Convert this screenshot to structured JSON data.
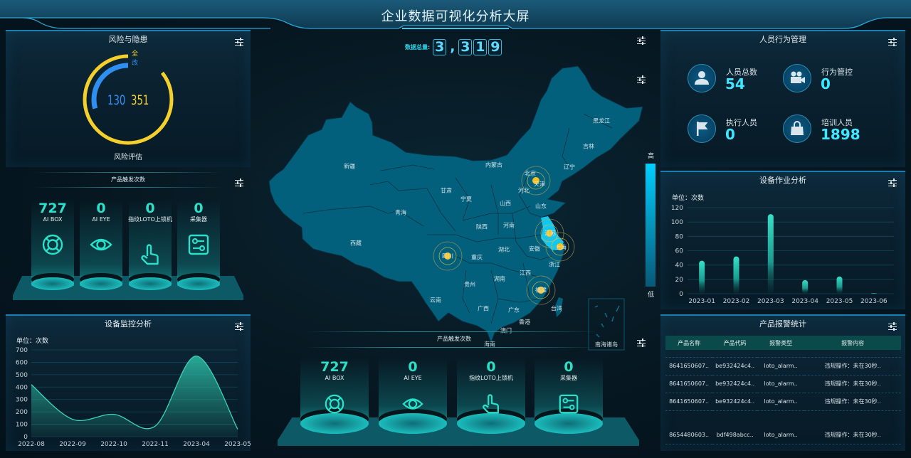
{
  "header": {
    "title": "企业数据可视化分析大屏"
  },
  "total": {
    "label": "数据总量:",
    "digits": [
      "3",
      ",",
      "3",
      "1",
      "9"
    ]
  },
  "risk": {
    "title": "风险与隐患",
    "legend_all": "全",
    "legend_fix": "改",
    "value_fix": "130",
    "value_all": "351",
    "caption": "风险评估",
    "colors": {
      "all": "#f5cf2c",
      "fix": "#2f8ff0"
    }
  },
  "product_left": {
    "title": "产品触发次数",
    "items": [
      {
        "value": "727",
        "label": "AI BOX",
        "icon": "lifebuoy-icon"
      },
      {
        "value": "0",
        "label": "AI EYE",
        "icon": "eye-icon"
      },
      {
        "value": "0",
        "label": "指纹LOTO上锁机",
        "icon": "hand-pointer-icon"
      },
      {
        "value": "0",
        "label": "采集器",
        "icon": "sliders-box-icon"
      }
    ]
  },
  "product_center": {
    "title": "产品触发次数",
    "items": [
      {
        "value": "727",
        "label": "AI BOX",
        "icon": "lifebuoy-icon"
      },
      {
        "value": "0",
        "label": "AI EYE",
        "icon": "eye-icon"
      },
      {
        "value": "0",
        "label": "指纹LOTO上锁机",
        "icon": "hand-pointer-icon"
      },
      {
        "value": "0",
        "label": "采集器",
        "icon": "sliders-box-icon"
      }
    ]
  },
  "personnel": {
    "title": "人员行为管理",
    "items": [
      {
        "label": "人员总数",
        "value": "54",
        "icon": "user-icon"
      },
      {
        "label": "行为管控",
        "value": "0",
        "icon": "video-camera-icon"
      },
      {
        "label": "执行人员",
        "value": "0",
        "icon": "flag-icon"
      },
      {
        "label": "培训人员",
        "value": "1898",
        "icon": "shopping-bag-icon"
      }
    ]
  },
  "map": {
    "legend_high": "高",
    "legend_low": "低",
    "south_sea": "南海诸岛",
    "provinces": [
      "新疆",
      "青海",
      "西藏",
      "甘肃",
      "宁夏",
      "内蒙古",
      "北京",
      "天津",
      "河北",
      "辽宁",
      "吉林",
      "黑龙江",
      "山西",
      "山东",
      "陕西",
      "河南",
      "江苏",
      "上海",
      "安徽",
      "湖北",
      "重庆",
      "四川",
      "浙江",
      "贵州",
      "湖南",
      "江西",
      "福建",
      "云南",
      "广西",
      "广东",
      "台湾",
      "香港",
      "澳门",
      "海南"
    ],
    "highlighted": [
      "北京",
      "天津",
      "江苏",
      "上海",
      "四川",
      "福建"
    ],
    "colors": {
      "fill": "#03607c",
      "high": "#13c8f0",
      "dot": "#ffc21a"
    }
  },
  "chart_data": [
    {
      "type": "area",
      "title": "设备监控分析",
      "unit": "单位：次数",
      "categories": [
        "2022-08",
        "2022-09",
        "2022-10",
        "2022-11",
        "2023-04",
        "2023-05"
      ],
      "values": [
        420,
        140,
        180,
        85,
        650,
        60
      ],
      "ylim": [
        0,
        700
      ],
      "yticks": [
        0,
        100,
        200,
        300,
        400,
        500,
        600,
        700
      ],
      "grid": true,
      "color": "#2ab6a0"
    },
    {
      "type": "bar",
      "title": "设备作业分析",
      "unit": "单位：次数",
      "categories": [
        "2023-01",
        "2023-02",
        "2023-03",
        "2023-04",
        "2023-05",
        "2023-06"
      ],
      "values": [
        46,
        52,
        111,
        19,
        24,
        1
      ],
      "ylim": [
        0,
        120
      ],
      "yticks": [
        0,
        20,
        40,
        60,
        80,
        100,
        120
      ],
      "grid": true,
      "color": "#33d9c4"
    }
  ],
  "alarms": {
    "title": "产品报警统计",
    "columns": [
      "产品名称",
      "产品代码",
      "报警类型",
      "报警内容"
    ],
    "rows": [
      [
        "8641650607..",
        "be932424c4..",
        "loto_alarm..",
        "违规操作：未在30秒.."
      ],
      [
        "8641650607..",
        "be932424c4..",
        "loto_alarm..",
        "违规操作：未在30秒.."
      ],
      [
        "8641650607..",
        "be932424c4..",
        "loto_alarm..",
        "违规操作：未在30秒.."
      ],
      [
        "8654480603..",
        "bdf498abcc..",
        "loto_alarm..",
        "违规操作：未在30秒.."
      ]
    ]
  }
}
